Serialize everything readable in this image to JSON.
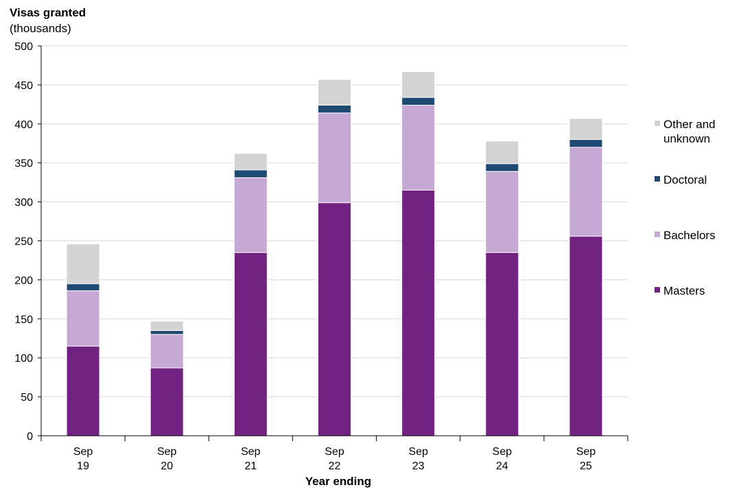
{
  "chart_data": {
    "type": "bar",
    "stacked": true,
    "ylabel_title": "Visas granted",
    "ylabel_sub": "(thousands)",
    "xlabel": "Year ending",
    "ylim": [
      0,
      500
    ],
    "yticks": [
      0,
      50,
      100,
      150,
      200,
      250,
      300,
      350,
      400,
      450,
      500
    ],
    "grid": true,
    "categories": [
      {
        "line1": "Sep",
        "line2": "19"
      },
      {
        "line1": "Sep",
        "line2": "20"
      },
      {
        "line1": "Sep",
        "line2": "21"
      },
      {
        "line1": "Sep",
        "line2": "22"
      },
      {
        "line1": "Sep",
        "line2": "23"
      },
      {
        "line1": "Sep",
        "line2": "24"
      },
      {
        "line1": "Sep",
        "line2": "25"
      }
    ],
    "series": [
      {
        "name": "Masters",
        "color": "#722281",
        "values": [
          115,
          87,
          235,
          299,
          315,
          235,
          256
        ]
      },
      {
        "name": "Bachelors",
        "color": "#c5a8d3",
        "values": [
          71,
          43,
          96,
          115,
          109,
          104,
          114
        ]
      },
      {
        "name": "Doctoral",
        "color": "#1f4a73",
        "values": [
          9,
          5,
          10,
          10,
          10,
          10,
          10
        ]
      },
      {
        "name": "Other and unknown",
        "color": "#d3d3d3",
        "values": [
          51,
          12,
          21,
          33,
          33,
          29,
          27
        ]
      }
    ],
    "legend": [
      {
        "key": "other",
        "lines": [
          "Other and",
          "unknown"
        ],
        "color": "#d3d3d3"
      },
      {
        "key": "doctoral",
        "lines": [
          "Doctoral"
        ],
        "color": "#1f4a73"
      },
      {
        "key": "bachelors",
        "lines": [
          "Bachelors"
        ],
        "color": "#c5a8d3"
      },
      {
        "key": "masters",
        "lines": [
          "Masters"
        ],
        "color": "#722281"
      }
    ]
  }
}
